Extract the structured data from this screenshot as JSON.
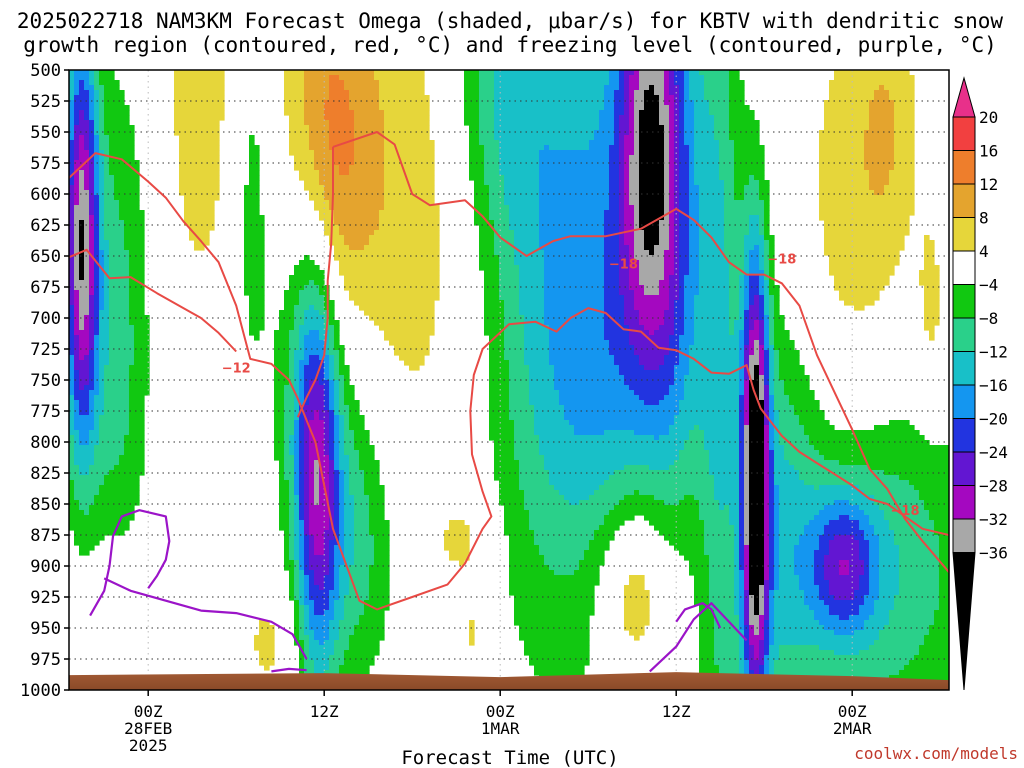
{
  "title_line1": "2025022718 NAM3KM Forecast Omega (shaded, μbar/s) for KBTV with dendritic snow",
  "title_line2": "growth region (contoured, red, °C) and freezing level (contoured, purple, °C)",
  "credit": "coolwx.com/models",
  "colors": {
    "dendritic_contour": "#e84a45",
    "freezing_contour": "#9b14c8",
    "terrain": "#9a5530"
  },
  "chart_data": {
    "type": "heatmap",
    "xlabel": "Forecast Time (UTC)",
    "y_axis": {
      "range": [
        500,
        1000
      ],
      "inverted": true,
      "ticks": [
        "500",
        "525",
        "550",
        "575",
        "600",
        "625",
        "650",
        "675",
        "700",
        "725",
        "750",
        "775",
        "800",
        "825",
        "850",
        "875",
        "900",
        "925",
        "950",
        "975",
        "1000"
      ],
      "grid": "dotted"
    },
    "x_axis": {
      "range_hours": [
        -4.5,
        45.5
      ],
      "ticks": [
        {
          "h": 0,
          "line1": "00Z",
          "line2": "28FEB",
          "line3": "2025"
        },
        {
          "h": 10,
          "line1": "12Z",
          "line2": "",
          "line3": ""
        },
        {
          "h": 20,
          "line1": "00Z",
          "line2": "1MAR",
          "line3": ""
        },
        {
          "h": 30,
          "line1": "12Z",
          "line2": "",
          "line3": ""
        },
        {
          "h": 40,
          "line1": "00Z",
          "line2": "2MAR",
          "line3": ""
        }
      ]
    },
    "colorbar": {
      "labels": [
        "20",
        "16",
        "12",
        "8",
        "4",
        "−4",
        "−8",
        "−12",
        "−16",
        "−20",
        "−24",
        "−28",
        "−32",
        "−36"
      ],
      "bins": [
        {
          "lo": 20,
          "hi": 24,
          "color": "#e8308a"
        },
        {
          "lo": 16,
          "hi": 20,
          "color": "#f24040"
        },
        {
          "lo": 12,
          "hi": 16,
          "color": "#ee7e2c"
        },
        {
          "lo": 8,
          "hi": 12,
          "color": "#e4a42e"
        },
        {
          "lo": 4,
          "hi": 8,
          "color": "#e6d63a"
        },
        {
          "lo": -4,
          "hi": 4,
          "color": "#ffffff"
        },
        {
          "lo": -8,
          "hi": -4,
          "color": "#11c811"
        },
        {
          "lo": -12,
          "hi": -8,
          "color": "#2ad08a"
        },
        {
          "lo": -16,
          "hi": -12,
          "color": "#18c0c8"
        },
        {
          "lo": -20,
          "hi": -16,
          "color": "#1496f0"
        },
        {
          "lo": -24,
          "hi": -20,
          "color": "#2234e0"
        },
        {
          "lo": -28,
          "hi": -24,
          "color": "#6216d2"
        },
        {
          "lo": -32,
          "hi": -28,
          "color": "#a408c0"
        },
        {
          "lo": -36,
          "hi": -32,
          "color": "#a8a8a8"
        },
        {
          "lo": -40,
          "hi": -36,
          "color": "#000000"
        }
      ]
    },
    "omega_features": [
      {
        "h": -3.8,
        "p": 640,
        "sh": 0.7,
        "sp": 120,
        "v": -34
      },
      {
        "h": -1.8,
        "p": 720,
        "sh": 1.3,
        "sp": 150,
        "v": -10
      },
      {
        "h": 6.0,
        "p": 600,
        "sh": 1.0,
        "sp": 140,
        "v": -7
      },
      {
        "h": 8.5,
        "p": 710,
        "sh": 1.1,
        "sp": 120,
        "v": -9
      },
      {
        "h": 9.6,
        "p": 830,
        "sh": 0.9,
        "sp": 120,
        "v": -26
      },
      {
        "h": 11.0,
        "p": 770,
        "sh": 1.6,
        "sp": 120,
        "v": -9
      },
      {
        "h": 12.0,
        "p": 890,
        "sh": 1.6,
        "sp": 80,
        "v": -8
      },
      {
        "h": 3.0,
        "p": 530,
        "sh": 1.4,
        "sp": 110,
        "v": 7
      },
      {
        "h": 10.0,
        "p": 580,
        "sh": 2.0,
        "sp": 120,
        "v": 11
      },
      {
        "h": 11.0,
        "p": 640,
        "sh": 2.5,
        "sp": 180,
        "v": 6
      },
      {
        "h": 16.0,
        "p": 600,
        "sh": 2.5,
        "sp": 160,
        "v": 5
      },
      {
        "h": 20.0,
        "p": 500,
        "sh": 2.0,
        "sp": 100,
        "v": -10
      },
      {
        "h": 22.5,
        "p": 700,
        "sh": 2.5,
        "sp": 190,
        "v": -10
      },
      {
        "h": 26.5,
        "p": 620,
        "sh": 3.0,
        "sp": 230,
        "v": -11
      },
      {
        "h": 28.4,
        "p": 560,
        "sh": 1.2,
        "sp": 120,
        "v": -24
      },
      {
        "h": 30.0,
        "p": 640,
        "sh": 1.3,
        "sp": 200,
        "v": -12
      },
      {
        "h": 26.5,
        "p": 810,
        "sh": 2.3,
        "sp": 140,
        "v": -7
      },
      {
        "h": 28.0,
        "p": 900,
        "sh": 3.0,
        "sp": 90,
        "v": 7
      },
      {
        "h": 27.5,
        "p": 920,
        "sh": 1.4,
        "sp": 50,
        "v": 9
      },
      {
        "h": 32.5,
        "p": 760,
        "sh": 0.9,
        "sp": 260,
        "v": -11
      },
      {
        "h": 34.5,
        "p": 830,
        "sh": 0.55,
        "sp": 130,
        "v": -40
      },
      {
        "h": 36.0,
        "p": 870,
        "sh": 1.5,
        "sp": 130,
        "v": -10
      },
      {
        "h": 41.5,
        "p": 900,
        "sh": 4.0,
        "sp": 100,
        "v": -12
      },
      {
        "h": 39.5,
        "p": 900,
        "sh": 1.3,
        "sp": 40,
        "v": -18
      },
      {
        "h": 40.0,
        "p": 620,
        "sh": 2.5,
        "sp": 140,
        "v": 6
      },
      {
        "h": 44.5,
        "p": 700,
        "sh": 0.6,
        "sp": 60,
        "v": 5
      },
      {
        "h": 42.0,
        "p": 540,
        "sh": 1.2,
        "sp": 70,
        "v": 5
      },
      {
        "h": -2.0,
        "p": 960,
        "sh": 1.8,
        "sp": 60,
        "v": 5
      },
      {
        "h": 7.0,
        "p": 960,
        "sh": 1.5,
        "sp": 40,
        "v": 5
      },
      {
        "h": 18.5,
        "p": 955,
        "sh": 0.6,
        "sp": 25,
        "v": 5
      },
      {
        "h": 18.0,
        "p": 880,
        "sh": 1.3,
        "sp": 30,
        "v": 5
      }
    ],
    "dendritic_growth_contours": [
      {
        "label": "−12",
        "label_at": [
          5.0,
          740
        ],
        "points": [
          [
            -4.5,
            587
          ],
          [
            -3,
            567
          ],
          [
            -1.5,
            572
          ],
          [
            0,
            590
          ],
          [
            1,
            603
          ],
          [
            2,
            622
          ],
          [
            3,
            638
          ],
          [
            4,
            655
          ],
          [
            5,
            690
          ],
          [
            5.8,
            733
          ],
          [
            7,
            737
          ],
          [
            8,
            750
          ],
          [
            8.5,
            765
          ],
          [
            9.5,
            800
          ],
          [
            10.5,
            870
          ],
          [
            12,
            928
          ],
          [
            13,
            935
          ],
          [
            15,
            925
          ],
          [
            17,
            915
          ],
          [
            18,
            898
          ],
          [
            19,
            870
          ],
          [
            19.5,
            860
          ],
          [
            19,
            840
          ],
          [
            18.4,
            810
          ],
          [
            18.3,
            775
          ],
          [
            18.5,
            746
          ],
          [
            19,
            725
          ],
          [
            20.5,
            705
          ],
          [
            22,
            703
          ],
          [
            23.2,
            711
          ],
          [
            24,
            700
          ],
          [
            25,
            692
          ],
          [
            26,
            696
          ],
          [
            27,
            709
          ],
          [
            28,
            711
          ],
          [
            29,
            724
          ],
          [
            30,
            726
          ],
          [
            31,
            733
          ],
          [
            32,
            744
          ],
          [
            33,
            745
          ],
          [
            34,
            738
          ],
          [
            34.4,
            758
          ],
          [
            34.8,
            773
          ],
          [
            35.4,
            784
          ],
          [
            36,
            795
          ],
          [
            37,
            808
          ],
          [
            38,
            817
          ],
          [
            39,
            826
          ],
          [
            40,
            835
          ],
          [
            41,
            846
          ],
          [
            42,
            850
          ],
          [
            43,
            860
          ],
          [
            44,
            870
          ],
          [
            45.5,
            875
          ]
        ]
      },
      {
        "label": "−18",
        "label_at": [
          27.0,
          656
        ],
        "points": [
          [
            -4.5,
            651
          ],
          [
            -3.5,
            645
          ],
          [
            -2.2,
            668
          ],
          [
            -1,
            667
          ],
          [
            0.5,
            680
          ],
          [
            2,
            692
          ],
          [
            3,
            700
          ],
          [
            4,
            712
          ],
          [
            5,
            727
          ]
        ]
      },
      {
        "label": "−18",
        "label_at": [
          36.0,
          652
        ],
        "points": [
          [
            10.5,
            562
          ],
          [
            13,
            550
          ],
          [
            14,
            560
          ],
          [
            15,
            600
          ],
          [
            16,
            609
          ],
          [
            18,
            605
          ],
          [
            19,
            618
          ],
          [
            20,
            635
          ],
          [
            21,
            645
          ],
          [
            21.5,
            650
          ],
          [
            22,
            646
          ],
          [
            23,
            638
          ],
          [
            24,
            634
          ],
          [
            26,
            634
          ],
          [
            28,
            628
          ],
          [
            30,
            612
          ],
          [
            31,
            621
          ],
          [
            32,
            635
          ],
          [
            33,
            655
          ],
          [
            34,
            665
          ],
          [
            35,
            665
          ],
          [
            36,
            672
          ],
          [
            37,
            690
          ],
          [
            38,
            730
          ],
          [
            39,
            760
          ],
          [
            40,
            790
          ],
          [
            41,
            822
          ],
          [
            42,
            838
          ],
          [
            43,
            862
          ],
          [
            44,
            880
          ],
          [
            45.5,
            905
          ]
        ]
      },
      {
        "label": "−18",
        "label_at": [
          43.0,
          855
        ],
        "points": [
          [
            8.5,
            780
          ],
          [
            9,
            764
          ],
          [
            9.5,
            750
          ],
          [
            10,
            730
          ],
          [
            10.2,
            700
          ],
          [
            10.2,
            670
          ],
          [
            10.4,
            640
          ],
          [
            10.5,
            600
          ],
          [
            10.5,
            562
          ]
        ]
      }
    ],
    "freezing_level_contours": [
      {
        "label": "",
        "points": [
          [
            -3.3,
            940
          ],
          [
            -2.5,
            920
          ],
          [
            -2.2,
            900
          ],
          [
            -2.0,
            876
          ],
          [
            -1.5,
            860
          ],
          [
            -0.5,
            855
          ],
          [
            1.0,
            860
          ],
          [
            1.2,
            880
          ],
          [
            1.0,
            895
          ],
          [
            0.5,
            908
          ],
          [
            0,
            918
          ]
        ]
      },
      {
        "label": "",
        "points": [
          [
            -2.5,
            910
          ],
          [
            -1.0,
            920
          ],
          [
            1.0,
            928
          ],
          [
            3.0,
            936
          ],
          [
            5,
            938
          ],
          [
            7,
            945
          ],
          [
            8.2,
            955
          ],
          [
            9,
            975
          ]
        ]
      },
      {
        "label": "",
        "points": [
          [
            7.0,
            985
          ],
          [
            8.0,
            983
          ],
          [
            9.0,
            984
          ]
        ]
      },
      {
        "label": "",
        "points": [
          [
            30.0,
            945
          ],
          [
            30.5,
            935
          ],
          [
            31.5,
            930
          ],
          [
            32.0,
            935
          ],
          [
            32.5,
            950
          ]
        ]
      },
      {
        "label": "",
        "points": [
          [
            28.5,
            985
          ],
          [
            30.0,
            965
          ],
          [
            31.0,
            943
          ],
          [
            32.0,
            930
          ],
          [
            33.0,
            945
          ],
          [
            34.0,
            960
          ]
        ]
      }
    ]
  }
}
